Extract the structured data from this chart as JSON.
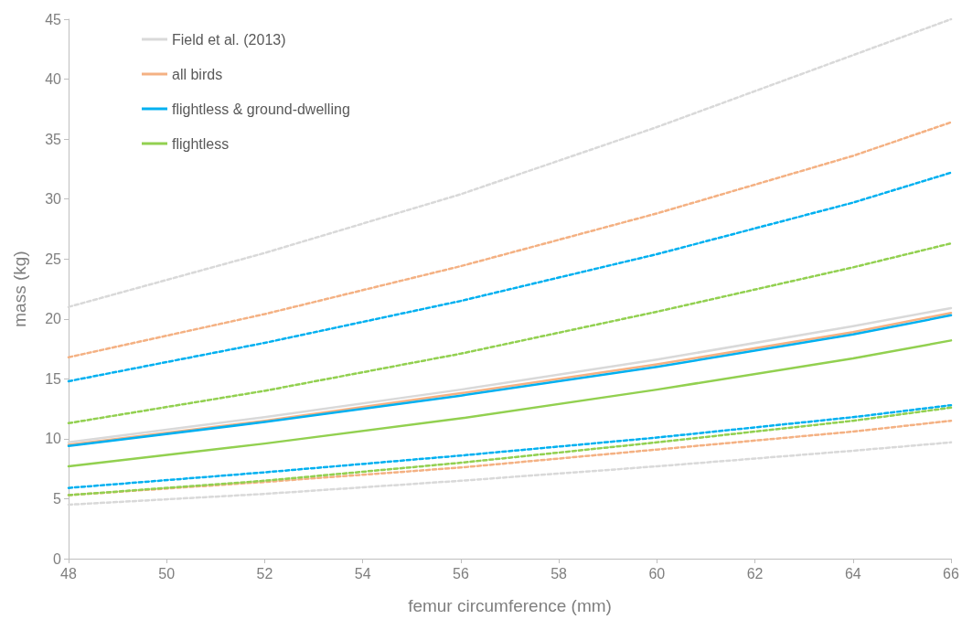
{
  "chart_data": {
    "type": "line",
    "xlabel": "femur circumference (mm)",
    "ylabel": "mass (kg)",
    "x": [
      48,
      52,
      56,
      60,
      64,
      66
    ],
    "xlim": [
      48,
      66
    ],
    "xticks": [
      48,
      50,
      52,
      54,
      56,
      58,
      60,
      62,
      64,
      66
    ],
    "ylim": [
      0,
      45
    ],
    "yticks": [
      0,
      5,
      10,
      15,
      20,
      25,
      30,
      35,
      40,
      45
    ],
    "grid": false,
    "legend": "top left",
    "marker": "none",
    "line_style": "solid",
    "series": [
      {
        "name": "Field et al. (2013)",
        "color": "#d9d9d9",
        "values": [
          9.7,
          11.8,
          14.1,
          16.6,
          19.4,
          20.9
        ]
      },
      {
        "name": "all birds",
        "color": "#f4b183",
        "values": [
          9.5,
          11.5,
          13.8,
          16.2,
          18.9,
          20.5
        ]
      },
      {
        "name": "flightless & ground-dwelling",
        "color": "#00b0f0",
        "values": [
          9.4,
          11.4,
          13.6,
          16.0,
          18.7,
          20.3
        ]
      },
      {
        "name": "flightless",
        "color": "#92d050",
        "values": [
          7.7,
          9.6,
          11.7,
          14.1,
          16.7,
          18.2
        ]
      },
      {
        "color": "#d9d9d9",
        "line_style": "dashed",
        "values": [
          21.0,
          25.5,
          30.4,
          36.0,
          42.0,
          45.0
        ]
      },
      {
        "color": "#d9d9d9",
        "line_style": "dashed",
        "values": [
          4.5,
          5.4,
          6.5,
          7.7,
          9.0,
          9.7
        ]
      },
      {
        "color": "#f4b183",
        "line_style": "dashed",
        "values": [
          16.8,
          20.4,
          24.4,
          28.8,
          33.6,
          36.4
        ]
      },
      {
        "color": "#f4b183",
        "line_style": "dashed",
        "values": [
          5.3,
          6.4,
          7.6,
          9.1,
          10.6,
          11.5
        ]
      },
      {
        "color": "#00b0f0",
        "line_style": "dashed",
        "values": [
          14.8,
          18.0,
          21.5,
          25.4,
          29.7,
          32.2
        ]
      },
      {
        "color": "#00b0f0",
        "line_style": "dashed",
        "values": [
          5.9,
          7.2,
          8.6,
          10.1,
          11.8,
          12.8
        ]
      },
      {
        "color": "#92d050",
        "line_style": "dashed",
        "values": [
          11.3,
          14.0,
          17.1,
          20.6,
          24.3,
          26.3
        ]
      },
      {
        "color": "#92d050",
        "line_style": "dashed",
        "values": [
          5.3,
          6.5,
          8.0,
          9.7,
          11.5,
          12.6
        ]
      }
    ]
  }
}
